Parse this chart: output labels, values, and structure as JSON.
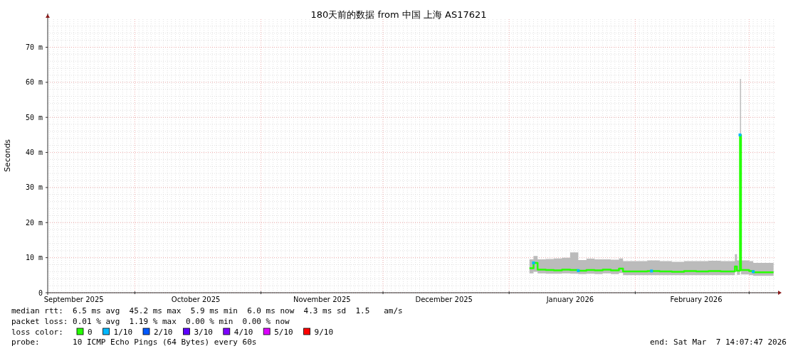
{
  "chart_data": {
    "type": "line",
    "title": "180天前的数据 from  中国 上海 AS17621",
    "ylabel": "Seconds",
    "xlim": [
      "2025-09-09T14:00",
      "2026-03-07T14:00"
    ],
    "ylim": [
      0,
      78
    ],
    "xticks": [
      {
        "value": "2025-09-16",
        "label": "September 2025"
      },
      {
        "value": "2025-10-01",
        "label": null
      },
      {
        "value": "2025-10-16",
        "label": "October 2025"
      },
      {
        "value": "2025-11-01",
        "label": null
      },
      {
        "value": "2025-11-16",
        "label": "November 2025"
      },
      {
        "value": "2025-12-01",
        "label": null
      },
      {
        "value": "2025-12-16",
        "label": "December 2025"
      },
      {
        "value": "2026-01-01",
        "label": null
      },
      {
        "value": "2026-01-16",
        "label": "January 2026"
      },
      {
        "value": "2026-02-01",
        "label": null
      },
      {
        "value": "2026-02-16",
        "label": "February 2026"
      },
      {
        "value": "2026-03-01",
        "label": null
      }
    ],
    "yticks": [
      0,
      {
        "value": 10,
        "label": "10 m"
      },
      {
        "value": 20,
        "label": "20 m"
      },
      {
        "value": 30,
        "label": "30 m"
      },
      {
        "value": 40,
        "label": "40 m"
      },
      {
        "value": 50,
        "label": "50 m"
      },
      {
        "value": 60,
        "label": "60 m"
      },
      {
        "value": 70,
        "label": "70 m"
      }
    ],
    "grid": true,
    "legend": "bottom",
    "legend_title": "loss color:",
    "series": [
      {
        "name": "0",
        "color": "#26ff00",
        "x": [
          "2026-01-06",
          "2026-01-07",
          "2026-01-08",
          "2026-01-10",
          "2026-01-12",
          "2026-01-14",
          "2026-01-16",
          "2026-01-18",
          "2026-01-20",
          "2026-01-22",
          "2026-01-24",
          "2026-01-26",
          "2026-01-28",
          "2026-01-29",
          "2026-02-01",
          "2026-02-04",
          "2026-02-07",
          "2026-02-10",
          "2026-02-13",
          "2026-02-16",
          "2026-02-19",
          "2026-02-22",
          "2026-02-25T12:00",
          "2026-02-26",
          "2026-02-26T18:00",
          "2026-02-27",
          "2026-03-01",
          "2026-03-02",
          "2026-03-04",
          "2026-03-07"
        ],
        "values": [
          7.0,
          8.5,
          6.6,
          6.5,
          6.4,
          6.6,
          6.5,
          6.3,
          6.5,
          6.4,
          6.6,
          6.4,
          6.9,
          6.1,
          6.1,
          6.2,
          6.1,
          6.0,
          6.2,
          6.1,
          6.2,
          6.1,
          7.5,
          6.3,
          45,
          6.5,
          6.2,
          5.8,
          5.8,
          5.8
        ],
        "lower": [
          5.5,
          6,
          5.5,
          5.4,
          5.4,
          5.5,
          5.4,
          5.3,
          5.4,
          5.3,
          5.5,
          5.3,
          5.6,
          5.0,
          5.0,
          5.0,
          5.0,
          5.0,
          5.0,
          5.0,
          5.0,
          5.0,
          6,
          5.1,
          40,
          5.2,
          5.0,
          4.8,
          4.8,
          4.8
        ],
        "upper": [
          9.5,
          10.5,
          9.5,
          9.6,
          9.8,
          10,
          11.5,
          9.3,
          9.7,
          9.5,
          9.5,
          9.4,
          9.8,
          9.0,
          9.0,
          9.2,
          9.0,
          8.8,
          9.0,
          9.0,
          9.1,
          9.0,
          11,
          9.2,
          61,
          9.2,
          9.0,
          8.5,
          8.5,
          8.5
        ]
      },
      {
        "name": "1/10",
        "type": "scatter",
        "marker": "square",
        "color": "#00b8ff",
        "x": [
          "2026-01-07",
          "2026-01-18",
          "2026-02-05",
          "2026-02-26T18:00",
          "2026-03-02"
        ],
        "values": [
          8.5,
          6.3,
          6.2,
          45,
          6.0
        ]
      },
      {
        "name": "2/10",
        "type": "scatter",
        "color": "#0059ff"
      },
      {
        "name": "3/10",
        "type": "scatter",
        "color": "#5e00ff"
      },
      {
        "name": "4/10",
        "type": "scatter",
        "color": "#7e00ff"
      },
      {
        "name": "5/10",
        "type": "scatter",
        "color": "#dd00ff"
      },
      {
        "name": "9/10",
        "type": "scatter",
        "color": "#ff0000"
      }
    ],
    "annotations": [
      "median rtt:  6.5 ms avg  45.2 ms max  5.9 ms min  6.0 ms now  4.3 ms sd  1.5   am/s",
      "packet loss: 0.01 % avg  1.19 % max  0.00 % min  0.00 % now",
      "probe:       10 ICMP Echo Pings (64 Bytes) every 60s",
      "end: Sat Mar  7 14:07:47 2026"
    ]
  }
}
